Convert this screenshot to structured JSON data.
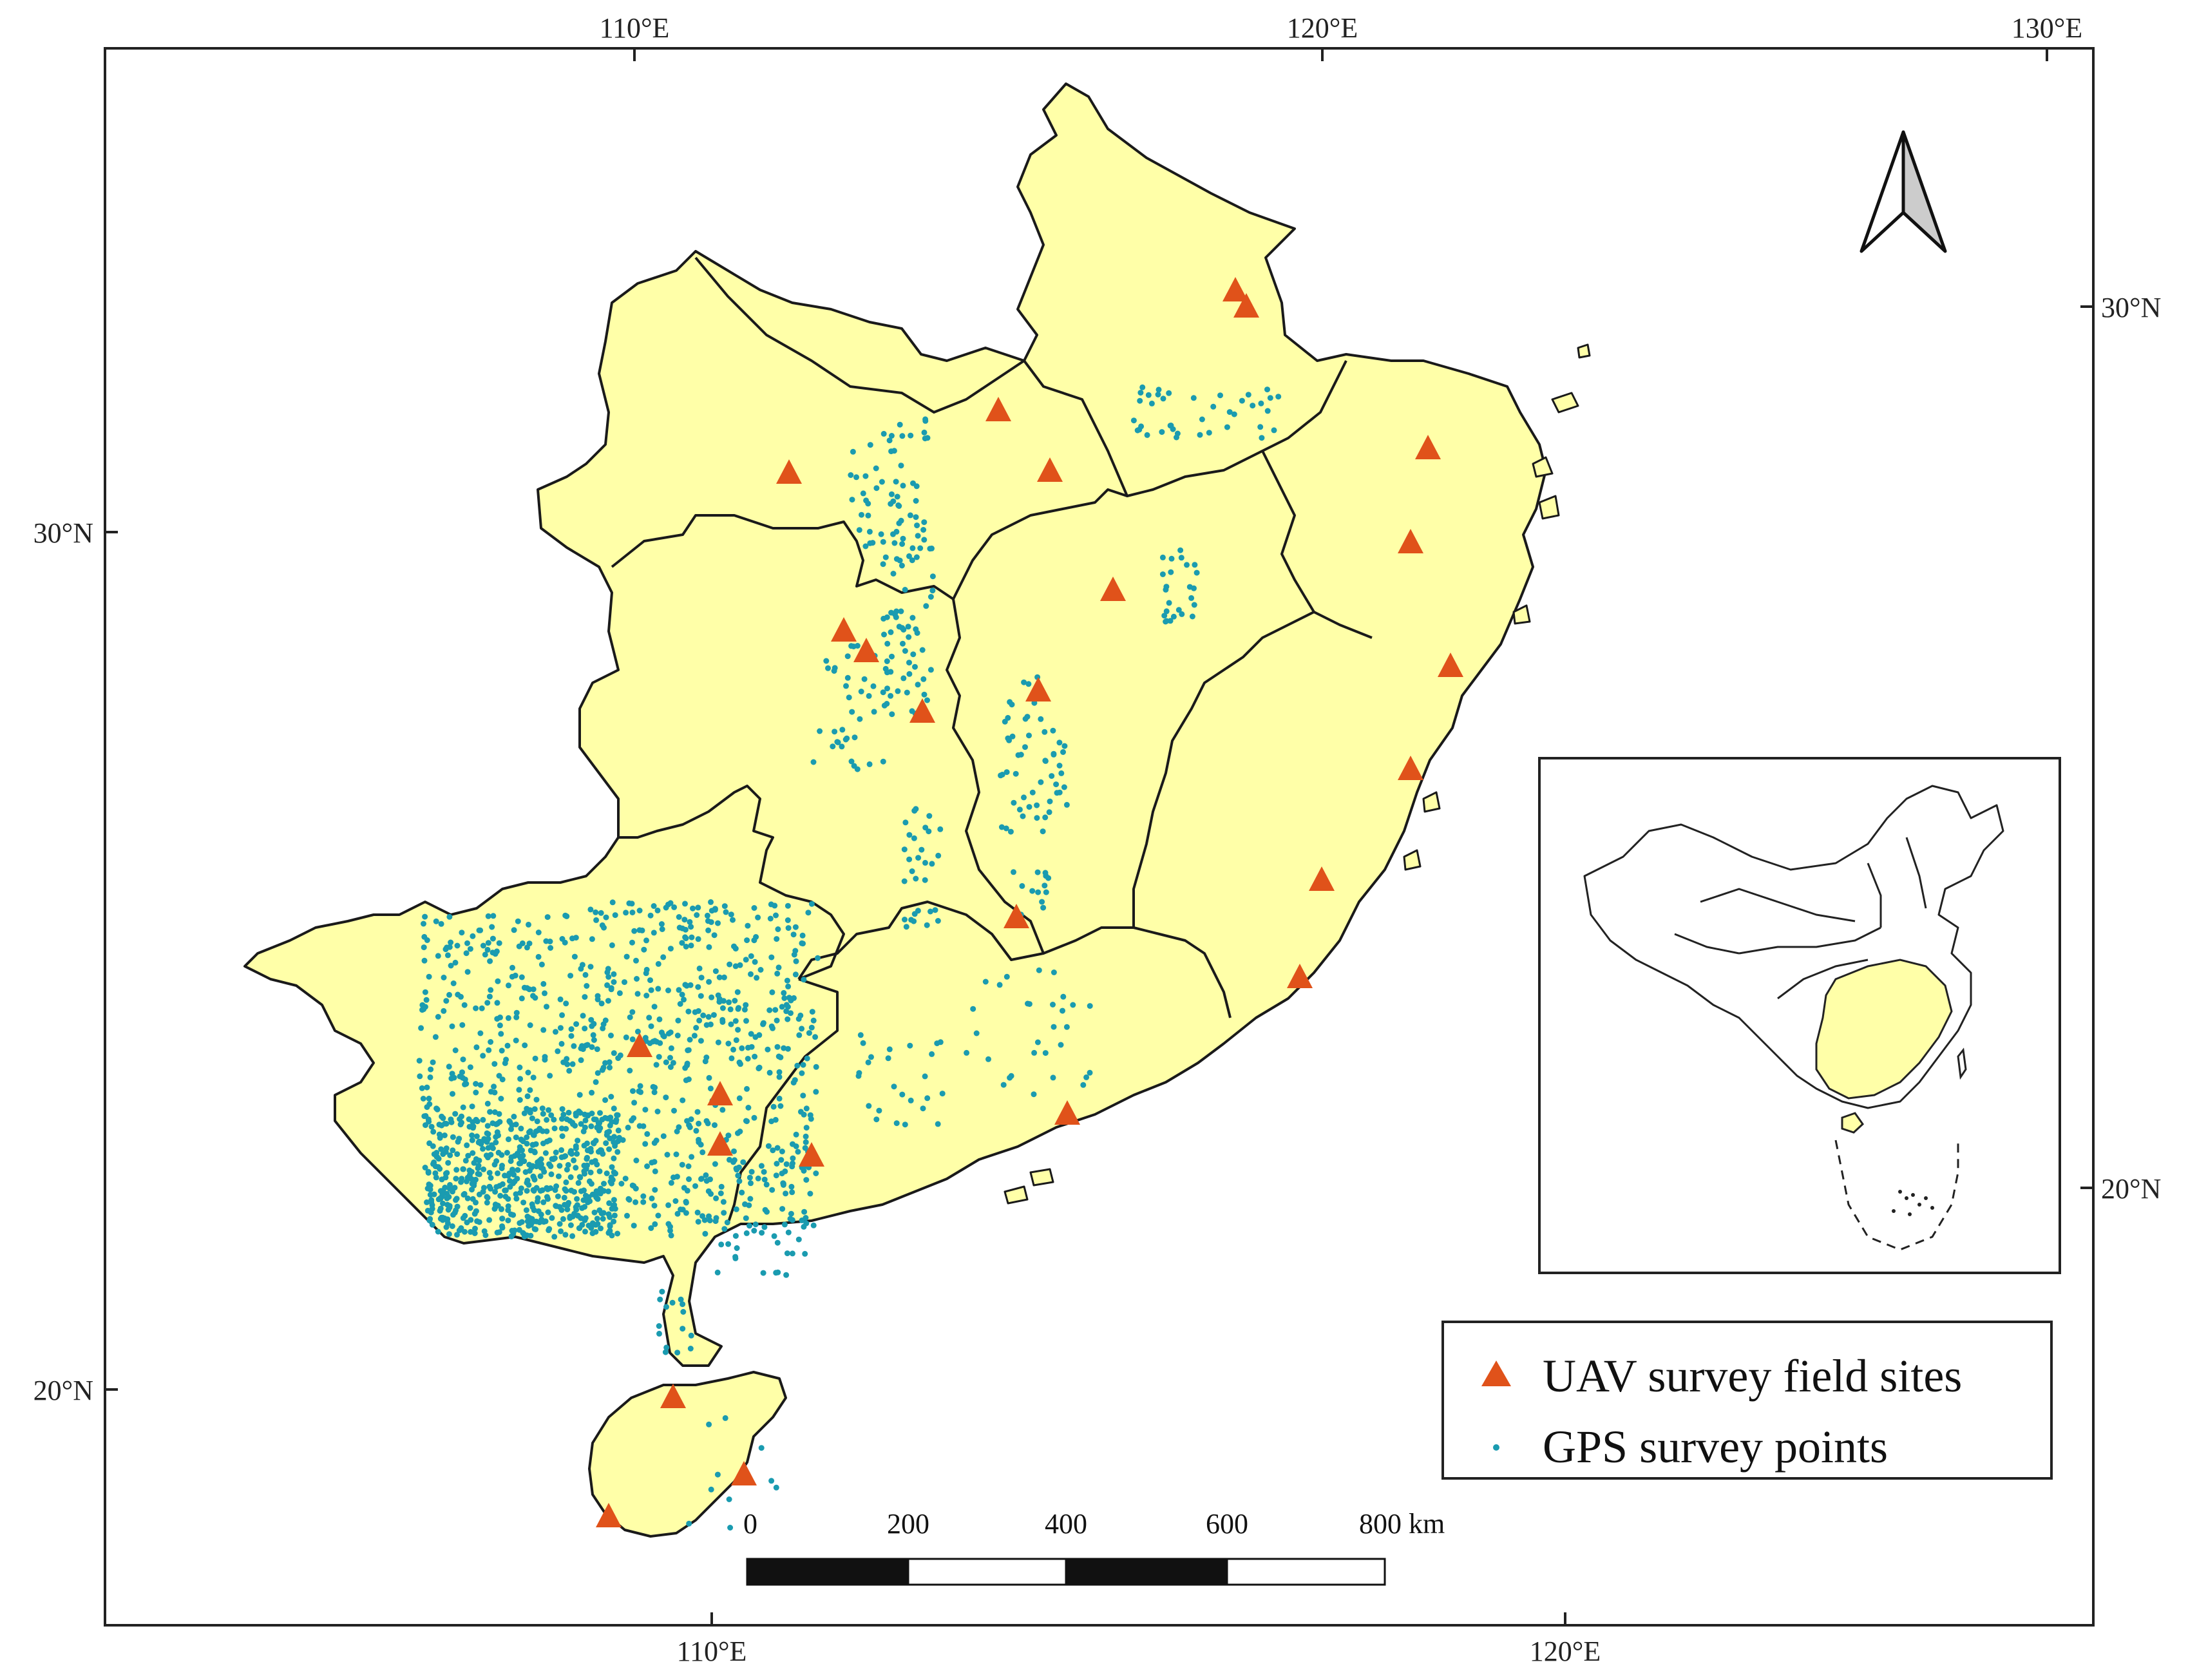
{
  "graticule": {
    "top_labels": [
      "110°E",
      "120°E",
      "130°E"
    ],
    "bottom_labels": [
      "110°E",
      "120°E"
    ],
    "left_labels": [
      "30°N",
      "20°N"
    ],
    "right_labels": [
      "30°N",
      "20°N"
    ]
  },
  "legend": {
    "uav_label": "UAV survey field sites",
    "gps_label": "GPS survey points"
  },
  "scalebar": {
    "ticks": [
      "0",
      "200",
      "400",
      "600",
      "800 km"
    ]
  },
  "colors": {
    "land": "#ffffa8",
    "border": "#1a1a1a",
    "uav": "#e0521a",
    "gps": "#1a9bb0",
    "inset_highlight": "#ffffa8"
  },
  "icons": {
    "north_arrow": "north-arrow-icon"
  }
}
